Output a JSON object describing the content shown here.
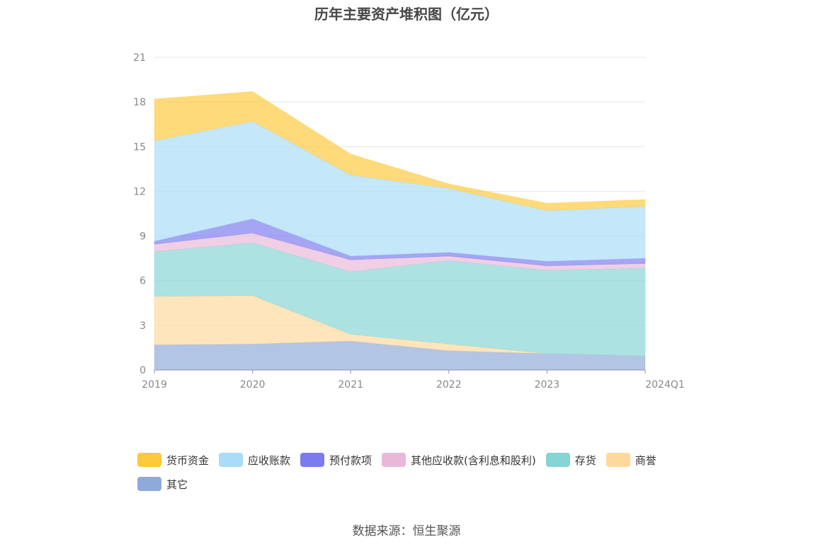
{
  "title": "历年主要资产堆积图（亿元）",
  "source": "数据来源：恒生聚源",
  "chart_data": {
    "type": "area",
    "stacked": true,
    "categories": [
      "2019",
      "2020",
      "2021",
      "2022",
      "2023",
      "2024Q1"
    ],
    "ylim": [
      0,
      21
    ],
    "yticks": [
      0,
      3,
      6,
      9,
      12,
      15,
      18,
      21
    ],
    "grid": true,
    "legend_position": "bottom",
    "series": [
      {
        "name": "其它",
        "color": "#8fa9d9",
        "values": [
          1.7,
          1.75,
          1.95,
          1.3,
          1.1,
          0.95
        ]
      },
      {
        "name": "商誉",
        "color": "#ffd99b",
        "values": [
          3.25,
          3.25,
          0.45,
          0.45,
          0.0,
          0.0
        ]
      },
      {
        "name": "存货",
        "color": "#86d4d4",
        "values": [
          3.0,
          3.55,
          4.2,
          5.6,
          5.6,
          5.9
        ]
      },
      {
        "name": "其他应收款(含利息和股利)",
        "color": "#e9b8d8",
        "values": [
          0.5,
          0.65,
          0.8,
          0.3,
          0.3,
          0.3
        ]
      },
      {
        "name": "预付款项",
        "color": "#7b7bef",
        "values": [
          0.2,
          0.95,
          0.25,
          0.25,
          0.3,
          0.35
        ]
      },
      {
        "name": "应收账款",
        "color": "#a8dcf7",
        "values": [
          6.75,
          6.55,
          5.45,
          4.3,
          3.4,
          3.5
        ]
      },
      {
        "name": "货币资金",
        "color": "#ffc93c",
        "values": [
          2.8,
          2.0,
          1.4,
          0.3,
          0.5,
          0.45
        ]
      }
    ]
  }
}
